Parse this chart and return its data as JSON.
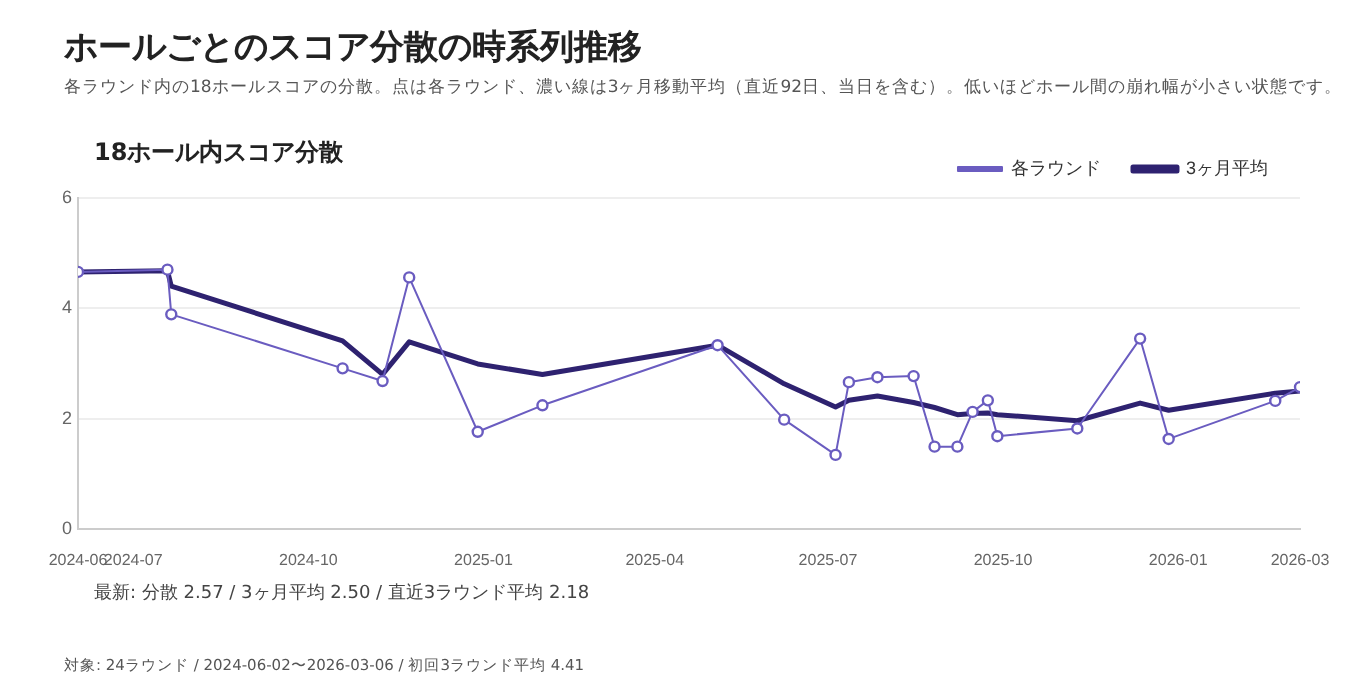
{
  "chart_data": {
    "type": "line",
    "title": "ホールごとのスコア分散の時系列推移",
    "subtitle": "各ラウンド内の18ホールスコアの分散。点は各ラウンド、濃い線は3ヶ月移動平均（直近92日、当日を含む）。低いほどホール間の崩れ幅が小さい状態です。",
    "ylabel": "18ホール内スコア分散",
    "annotations": [
      "最新: 分散 2.57 / 3ヶ月平均 2.50 / 直近3ラウンド平均 2.18",
      "対象: 24ラウンド / 2024-06-02〜2026-03-06 / 初回3ラウンド平均 4.41"
    ],
    "x": [
      "2024-06-02",
      "2024-07-19",
      "2024-07-21",
      "2024-10-19",
      "2024-11-09",
      "2024-11-23",
      "2024-12-29",
      "2025-02-01",
      "2025-05-04",
      "2025-06-08",
      "2025-07-05",
      "2025-07-12",
      "2025-07-27",
      "2025-08-15",
      "2025-08-26",
      "2025-09-07",
      "2025-09-15",
      "2025-09-23",
      "2025-09-28",
      "2025-11-09",
      "2025-12-12",
      "2025-12-27",
      "2026-02-21",
      "2026-03-06"
    ],
    "series": [
      {
        "name": "各ラウンド",
        "color": "#6a5cc0",
        "marker": "circle",
        "values": [
          4.66,
          4.7,
          3.89,
          2.91,
          2.68,
          4.56,
          1.76,
          2.24,
          3.33,
          1.98,
          1.34,
          2.66,
          2.75,
          2.77,
          1.49,
          1.49,
          2.12,
          2.33,
          1.68,
          1.82,
          3.45,
          1.63,
          2.32,
          2.57
        ]
      },
      {
        "name": "3ヶ月平均",
        "color": "#2e2270",
        "marker": "none",
        "values": [
          4.66,
          4.68,
          4.4,
          3.41,
          2.8,
          3.39,
          2.99,
          2.8,
          3.33,
          2.63,
          2.21,
          2.33,
          2.41,
          2.29,
          2.2,
          2.07,
          2.09,
          2.1,
          2.07,
          1.96,
          2.28,
          2.15,
          2.46,
          2.5
        ]
      }
    ],
    "xlim": [
      "2024-06-02",
      "2026-03-06"
    ],
    "xticks": [
      {
        "value": "2024-06-02",
        "label": "2024-06"
      },
      {
        "value": "2024-07-01",
        "label": "2024-07"
      },
      {
        "value": "2024-10-01",
        "label": "2024-10"
      },
      {
        "value": "2025-01-01",
        "label": "2025-01"
      },
      {
        "value": "2025-04-01",
        "label": "2025-04"
      },
      {
        "value": "2025-07-01",
        "label": "2025-07"
      },
      {
        "value": "2025-10-01",
        "label": "2025-10"
      },
      {
        "value": "2026-01-01",
        "label": "2026-01"
      },
      {
        "value": "2026-03-06",
        "label": "2026-03"
      }
    ],
    "ylim": [
      0,
      6
    ],
    "yticks": [
      0,
      2,
      4,
      6
    ],
    "grid": "y",
    "legend": "top right"
  }
}
